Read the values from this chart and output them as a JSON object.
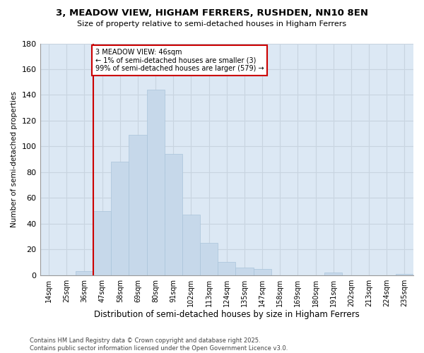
{
  "title1": "3, MEADOW VIEW, HIGHAM FERRERS, RUSHDEN, NN10 8EN",
  "title2": "Size of property relative to semi-detached houses in Higham Ferrers",
  "xlabel": "Distribution of semi-detached houses by size in Higham Ferrers",
  "ylabel": "Number of semi-detached properties",
  "footnote1": "Contains HM Land Registry data © Crown copyright and database right 2025.",
  "footnote2": "Contains public sector information licensed under the Open Government Licence v3.0.",
  "annotation_title": "3 MEADOW VIEW: 46sqm",
  "annotation_line1": "← 1% of semi-detached houses are smaller (3)",
  "annotation_line2": "99% of semi-detached houses are larger (579) →",
  "bar_color": "#c6d8ea",
  "bar_edge_color": "#aac4da",
  "marker_color": "#cc0000",
  "annotation_box_color": "#ffffff",
  "annotation_border_color": "#cc0000",
  "categories": [
    "14sqm",
    "25sqm",
    "36sqm",
    "47sqm",
    "58sqm",
    "69sqm",
    "80sqm",
    "91sqm",
    "102sqm",
    "113sqm",
    "124sqm",
    "135sqm",
    "147sqm",
    "158sqm",
    "169sqm",
    "180sqm",
    "191sqm",
    "202sqm",
    "213sqm",
    "224sqm",
    "235sqm"
  ],
  "values": [
    0,
    0,
    3,
    50,
    88,
    109,
    144,
    94,
    47,
    25,
    10,
    6,
    5,
    0,
    0,
    0,
    2,
    0,
    0,
    0,
    1
  ],
  "marker_index": 3,
  "ylim": [
    0,
    180
  ],
  "yticks": [
    0,
    20,
    40,
    60,
    80,
    100,
    120,
    140,
    160,
    180
  ],
  "grid_color": "#c8d4e0",
  "background_color": "#dce8f4",
  "fig_background": "#ffffff"
}
